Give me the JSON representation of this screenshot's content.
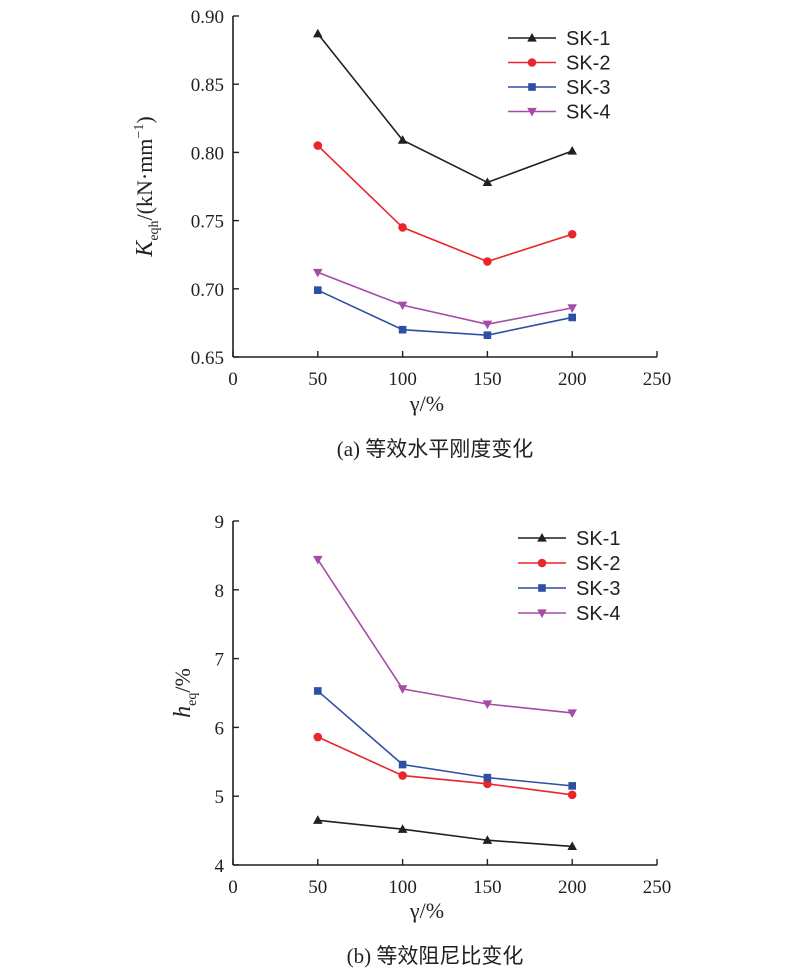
{
  "chart_data": [
    {
      "type": "line",
      "caption": "(a) 等效水平刚度变化",
      "xlabel": "γ/%",
      "ylabel": {
        "main": "K",
        "sub": "eqh",
        "rest": "/(kN·mm",
        "sup": "−1",
        "close": ")"
      },
      "xlim": [
        0,
        250
      ],
      "ylim": [
        0.65,
        0.9
      ],
      "xticks": [
        "0",
        "50",
        "100",
        "150",
        "200",
        "250"
      ],
      "yticks": [
        "0.65",
        "0.70",
        "0.75",
        "0.80",
        "0.85",
        "0.90"
      ],
      "x": [
        50,
        100,
        150,
        200
      ],
      "legend_position": "top-right",
      "grid": false,
      "series": [
        {
          "name": "SK-1",
          "color": "#231f20",
          "marker": "triangle-up",
          "values": [
            0.887,
            0.809,
            0.778,
            0.801
          ]
        },
        {
          "name": "SK-2",
          "color": "#e8262c",
          "marker": "circle",
          "values": [
            0.805,
            0.745,
            0.72,
            0.74
          ]
        },
        {
          "name": "SK-3",
          "color": "#2e4fa3",
          "marker": "square",
          "values": [
            0.699,
            0.67,
            0.666,
            0.679
          ]
        },
        {
          "name": "SK-4",
          "color": "#a64ca6",
          "marker": "triangle-down",
          "values": [
            0.712,
            0.688,
            0.674,
            0.686
          ]
        }
      ]
    },
    {
      "type": "line",
      "caption": "(b) 等效阻尼比变化",
      "xlabel": "γ/%",
      "ylabel": {
        "main": "h",
        "sub": "eq",
        "rest": "/%",
        "sup": "",
        "close": ""
      },
      "xlim": [
        0,
        250
      ],
      "ylim": [
        4,
        9
      ],
      "xticks": [
        "0",
        "50",
        "100",
        "150",
        "200",
        "250"
      ],
      "yticks": [
        "4",
        "5",
        "6",
        "7",
        "8",
        "9"
      ],
      "x": [
        50,
        100,
        150,
        200
      ],
      "legend_position": "top-right",
      "grid": false,
      "series": [
        {
          "name": "SK-1",
          "color": "#231f20",
          "marker": "triangle-up",
          "values": [
            4.65,
            4.52,
            4.36,
            4.27
          ]
        },
        {
          "name": "SK-2",
          "color": "#e8262c",
          "marker": "circle",
          "values": [
            5.86,
            5.3,
            5.18,
            5.02
          ]
        },
        {
          "name": "SK-3",
          "color": "#2e4fa3",
          "marker": "square",
          "values": [
            6.53,
            5.46,
            5.27,
            5.15
          ]
        },
        {
          "name": "SK-4",
          "color": "#a64ca6",
          "marker": "triangle-down",
          "values": [
            8.44,
            6.56,
            6.34,
            6.21
          ]
        }
      ]
    }
  ]
}
